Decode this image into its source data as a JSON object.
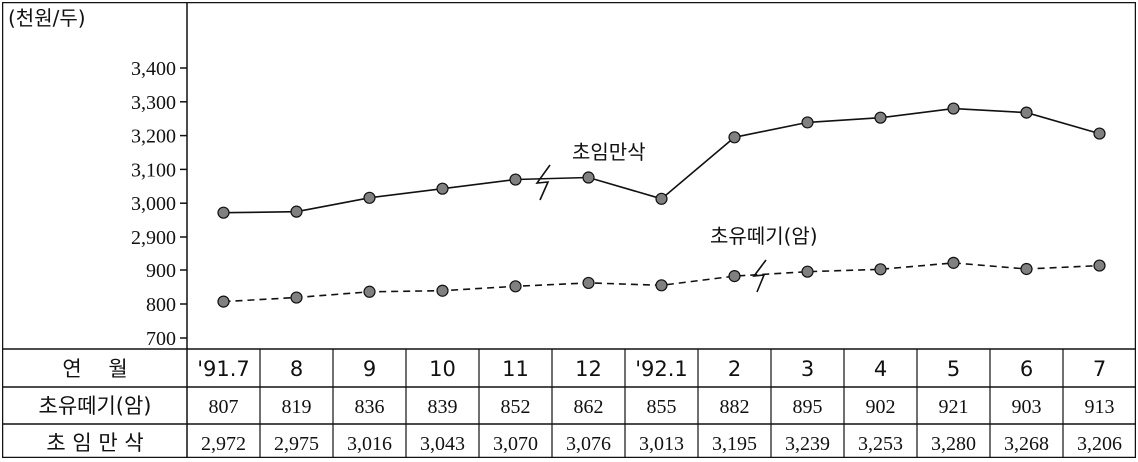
{
  "chart_data": {
    "type": "line",
    "unit_label": "(천원/두)",
    "y_ticks_upper": [
      "3,400",
      "3,300",
      "3,200",
      "3,100",
      "3,000",
      "2,900"
    ],
    "y_ticks_lower": [
      "900",
      "800",
      "700"
    ],
    "ylim_upper": [
      2900,
      3400
    ],
    "ylim_lower": [
      700,
      900
    ],
    "axis_break": true,
    "categories": [
      "'91.7",
      "8",
      "9",
      "10",
      "11",
      "12",
      "'92.1",
      "2",
      "3",
      "4",
      "5",
      "6",
      "7"
    ],
    "series": [
      {
        "name": "초임만삭",
        "style": "solid",
        "values": [
          2972,
          2975,
          3016,
          3043,
          3070,
          3076,
          3013,
          3195,
          3239,
          3253,
          3280,
          3268,
          3206
        ]
      },
      {
        "name": "초유떼기(암)",
        "style": "dashed",
        "values": [
          807,
          819,
          836,
          839,
          852,
          862,
          855,
          882,
          895,
          902,
          921,
          903,
          913
        ]
      }
    ],
    "table": {
      "header_label": "연    월",
      "rows": [
        {
          "label": "초유떼기(암)",
          "cells": [
            "807",
            "819",
            "836",
            "839",
            "852",
            "862",
            "855",
            "882",
            "895",
            "902",
            "921",
            "903",
            "913"
          ]
        },
        {
          "label": "초 임 만 삭",
          "cells": [
            "2,972",
            "2,975",
            "3,016",
            "3,043",
            "3,070",
            "3,076",
            "3,013",
            "3,195",
            "3,239",
            "3,253",
            "3,280",
            "3,268",
            "3,206"
          ]
        }
      ]
    },
    "marker_color": "#808080",
    "line_color": "#111111",
    "grid": false
  }
}
